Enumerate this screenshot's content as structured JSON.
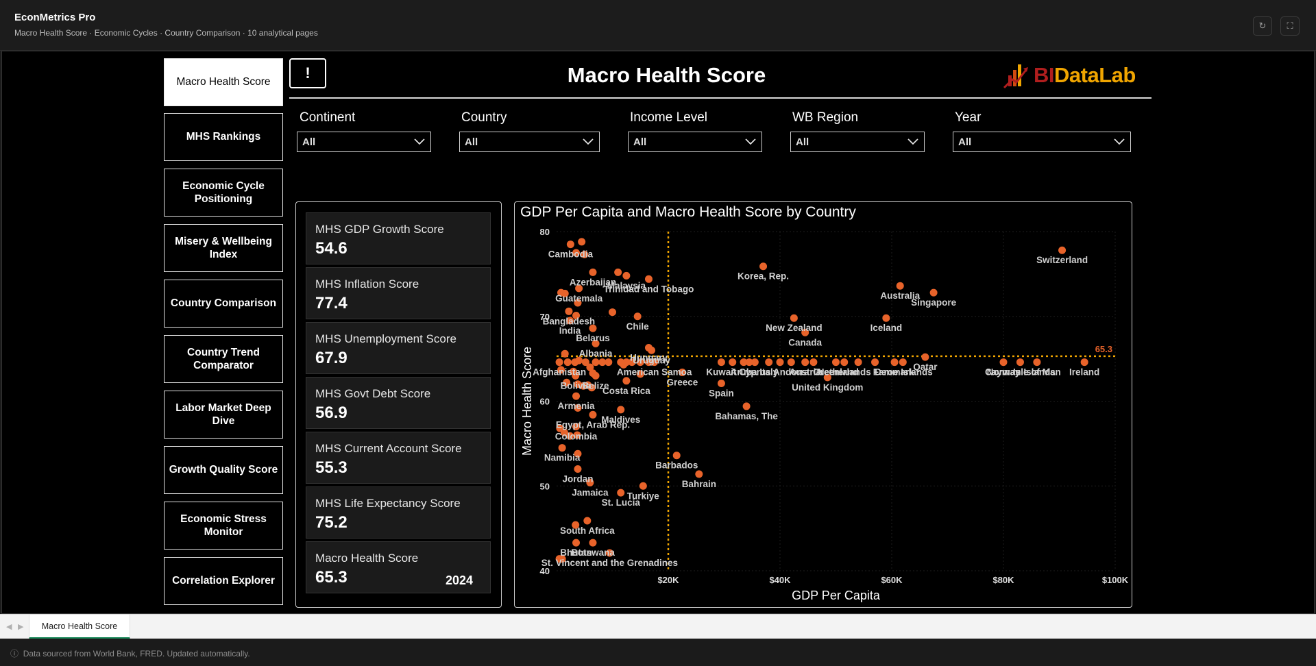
{
  "app": {
    "title": "EconMetrics Pro",
    "subtitle": "Macro Health Score · Economic Cycles · Country Comparison · 10 analytical pages",
    "refresh_icon": "↻",
    "fullscreen_icon": "⛶"
  },
  "nav": [
    {
      "label": "Macro Health Score",
      "active": true
    },
    {
      "label": "MHS Rankings",
      "active": false
    },
    {
      "label": "Economic Cycle Positioning",
      "active": false
    },
    {
      "label": "Misery & Wellbeing Index",
      "active": false
    },
    {
      "label": "Country Comparison",
      "active": false
    },
    {
      "label": "Country Trend Comparator",
      "active": false
    },
    {
      "label": "Labor Market Deep Dive",
      "active": false
    },
    {
      "label": "Growth Quality Score",
      "active": false
    },
    {
      "label": "Economic Stress Monitor",
      "active": false
    },
    {
      "label": "Correlation Explorer",
      "active": false
    }
  ],
  "header": {
    "alert_icon": "!",
    "page_title": "Macro Health Score",
    "logo_bi": "BI",
    "logo_rest": "DataLab"
  },
  "filters": [
    {
      "label": "Continent",
      "value": "All"
    },
    {
      "label": "Country",
      "value": "All"
    },
    {
      "label": "Income Level",
      "value": "All"
    },
    {
      "label": "WB Region",
      "value": "All"
    },
    {
      "label": "Year",
      "value": "All"
    }
  ],
  "kpis": [
    {
      "label": "MHS GDP Growth Score",
      "value": "54.6"
    },
    {
      "label": "MHS Inflation Score",
      "value": "77.4"
    },
    {
      "label": "MHS Unemployment Score",
      "value": "67.9"
    },
    {
      "label": "MHS Govt Debt Score",
      "value": "56.9"
    },
    {
      "label": "MHS Current Account Score",
      "value": "55.3"
    },
    {
      "label": "MHS Life Expectancy Score",
      "value": "75.2"
    },
    {
      "label": "Macro Health Score",
      "value": "65.3",
      "year": "2024"
    }
  ],
  "chart_data": {
    "type": "scatter",
    "title": "GDP Per Capita and Macro Health Score by Country",
    "xlabel": "GDP Per Capita",
    "ylabel": "Macro Health Score",
    "xlim": [
      0,
      100000
    ],
    "ylim": [
      40,
      80
    ],
    "xticks": [
      {
        "v": 20000,
        "label": "$20K"
      },
      {
        "v": 40000,
        "label": "$40K"
      },
      {
        "v": 60000,
        "label": "$60K"
      },
      {
        "v": 80000,
        "label": "$80K"
      },
      {
        "v": 100000,
        "label": "$100K"
      }
    ],
    "yticks": [
      {
        "v": 40,
        "label": "40"
      },
      {
        "v": 50,
        "label": "50"
      },
      {
        "v": 60,
        "label": "60"
      },
      {
        "v": 70,
        "label": "70"
      },
      {
        "v": 80,
        "label": "80"
      }
    ],
    "avg_x": 20000,
    "avg_y": 65.3,
    "avg_y_label": "65.3",
    "point_color": "#e8632a",
    "ref_line_color": "#f0a500",
    "points": [
      {
        "name": "Switzerland",
        "x": 90500,
        "y": 77.8
      },
      {
        "name": "Singapore",
        "x": 67500,
        "y": 72.8
      },
      {
        "name": "Australia",
        "x": 61500,
        "y": 73.6
      },
      {
        "name": "Iceland",
        "x": 59000,
        "y": 69.8
      },
      {
        "name": "Korea, Rep.",
        "x": 37000,
        "y": 75.9
      },
      {
        "name": "New Zealand",
        "x": 42500,
        "y": 69.8
      },
      {
        "name": "Canada",
        "x": 44500,
        "y": 68.1
      },
      {
        "name": "Malaysia",
        "x": 12500,
        "y": 74.8
      },
      {
        "name": "Trinidad and Tobago",
        "x": 16500,
        "y": 74.4
      },
      {
        "name": "Cambodia",
        "x": 2500,
        "y": 78.5
      },
      {
        "name": "",
        "x": 4500,
        "y": 78.8
      },
      {
        "name": "",
        "x": 3500,
        "y": 77.5
      },
      {
        "name": "",
        "x": 5000,
        "y": 77.3
      },
      {
        "name": "Azerbaijan",
        "x": 6500,
        "y": 75.2
      },
      {
        "name": "",
        "x": 11000,
        "y": 75.2
      },
      {
        "name": "Guatemala",
        "x": 4000,
        "y": 73.3
      },
      {
        "name": "",
        "x": 1500,
        "y": 72.7
      },
      {
        "name": "",
        "x": 800,
        "y": 72.8
      },
      {
        "name": "",
        "x": 3800,
        "y": 71.6
      },
      {
        "name": "Bangladesh",
        "x": 2200,
        "y": 70.6
      },
      {
        "name": "Chile",
        "x": 14500,
        "y": 70.0
      },
      {
        "name": "",
        "x": 10000,
        "y": 70.5
      },
      {
        "name": "",
        "x": 3500,
        "y": 70.1
      },
      {
        "name": "India",
        "x": 2400,
        "y": 69.5
      },
      {
        "name": "Belarus",
        "x": 6500,
        "y": 68.6
      },
      {
        "name": "Albania",
        "x": 7000,
        "y": 66.8
      },
      {
        "name": "Hungary",
        "x": 16500,
        "y": 66.3
      },
      {
        "name": "Uruguay",
        "x": 17000,
        "y": 66.0
      },
      {
        "name": "",
        "x": 1500,
        "y": 65.6
      },
      {
        "name": "",
        "x": 4000,
        "y": 64.8
      },
      {
        "name": "Afghanistan",
        "x": 500,
        "y": 64.6
      },
      {
        "name": "",
        "x": 2000,
        "y": 64.6
      },
      {
        "name": "",
        "x": 3300,
        "y": 64.6
      },
      {
        "name": "",
        "x": 5200,
        "y": 64.6
      },
      {
        "name": "",
        "x": 7000,
        "y": 64.6
      },
      {
        "name": "",
        "x": 8200,
        "y": 64.6
      },
      {
        "name": "",
        "x": 9300,
        "y": 64.6
      },
      {
        "name": "",
        "x": 11500,
        "y": 64.6
      },
      {
        "name": "",
        "x": 12500,
        "y": 64.6
      },
      {
        "name": "",
        "x": 13500,
        "y": 64.6
      },
      {
        "name": "",
        "x": 15000,
        "y": 64.6
      },
      {
        "name": "",
        "x": 16500,
        "y": 64.6
      },
      {
        "name": "American Samoa",
        "x": 17500,
        "y": 64.6
      },
      {
        "name": "",
        "x": 12000,
        "y": 64.3
      },
      {
        "name": "",
        "x": 6000,
        "y": 64.0
      },
      {
        "name": "",
        "x": 800,
        "y": 63.7
      },
      {
        "name": "",
        "x": 3000,
        "y": 63.5
      },
      {
        "name": "Bolivia",
        "x": 3400,
        "y": 63.0
      },
      {
        "name": "",
        "x": 6500,
        "y": 63.3
      },
      {
        "name": "Belize",
        "x": 7000,
        "y": 63.0
      },
      {
        "name": "",
        "x": 15000,
        "y": 63.2
      },
      {
        "name": "",
        "x": 1800,
        "y": 62.2
      },
      {
        "name": "",
        "x": 3800,
        "y": 62.0
      },
      {
        "name": "",
        "x": 4800,
        "y": 61.8
      },
      {
        "name": "",
        "x": 5600,
        "y": 61.9
      },
      {
        "name": "",
        "x": 6300,
        "y": 61.6
      },
      {
        "name": "Armenia",
        "x": 3500,
        "y": 60.6
      },
      {
        "name": "Costa Rica",
        "x": 12500,
        "y": 62.4
      },
      {
        "name": "Greece",
        "x": 22500,
        "y": 63.4
      },
      {
        "name": "Spain",
        "x": 29500,
        "y": 62.1
      },
      {
        "name": "",
        "x": 3800,
        "y": 59.2
      },
      {
        "name": "Egypt, Arab Rep.",
        "x": 6500,
        "y": 58.4
      },
      {
        "name": "Maldives",
        "x": 11500,
        "y": 59.0
      },
      {
        "name": "Colombia",
        "x": 3500,
        "y": 57.0
      },
      {
        "name": "",
        "x": 600,
        "y": 56.8
      },
      {
        "name": "",
        "x": 1400,
        "y": 56.3
      },
      {
        "name": "",
        "x": 2400,
        "y": 55.9
      },
      {
        "name": "",
        "x": 3700,
        "y": 56.0
      },
      {
        "name": "Namibia",
        "x": 1000,
        "y": 54.5
      },
      {
        "name": "",
        "x": 3800,
        "y": 53.8
      },
      {
        "name": "Jordan",
        "x": 3800,
        "y": 52.0
      },
      {
        "name": "Barbados",
        "x": 21500,
        "y": 53.6
      },
      {
        "name": "Bahrain",
        "x": 25500,
        "y": 51.4
      },
      {
        "name": "Jamaica",
        "x": 6000,
        "y": 50.4
      },
      {
        "name": "Turkiye",
        "x": 15500,
        "y": 50.0
      },
      {
        "name": "St. Lucia",
        "x": 11500,
        "y": 49.2
      },
      {
        "name": "South Africa",
        "x": 5500,
        "y": 45.9
      },
      {
        "name": "",
        "x": 3400,
        "y": 45.4
      },
      {
        "name": "Bhutan",
        "x": 3500,
        "y": 43.3
      },
      {
        "name": "Botswana",
        "x": 6500,
        "y": 43.3
      },
      {
        "name": "St. Vincent and the Grenadines",
        "x": 9500,
        "y": 42.1
      },
      {
        "name": "",
        "x": 500,
        "y": 41.4
      },
      {
        "name": "",
        "x": 1000,
        "y": 41.4
      },
      {
        "name": "Bahamas, The",
        "x": 34000,
        "y": 59.4
      },
      {
        "name": "Kuwait",
        "x": 29500,
        "y": 64.6
      },
      {
        "name": "",
        "x": 31500,
        "y": 64.6
      },
      {
        "name": "Aruba",
        "x": 33500,
        "y": 64.6
      },
      {
        "name": "",
        "x": 34500,
        "y": 64.6
      },
      {
        "name": "Cyprus",
        "x": 35500,
        "y": 64.6
      },
      {
        "name": "Italy",
        "x": 38000,
        "y": 64.6
      },
      {
        "name": "",
        "x": 40000,
        "y": 64.6
      },
      {
        "name": "Andorra",
        "x": 42000,
        "y": 64.6
      },
      {
        "name": "Austria",
        "x": 44500,
        "y": 64.6
      },
      {
        "name": "",
        "x": 46000,
        "y": 64.6
      },
      {
        "name": "Greenland",
        "x": 50000,
        "y": 64.6
      },
      {
        "name": "Netherlands",
        "x": 51500,
        "y": 64.6
      },
      {
        "name": "",
        "x": 54000,
        "y": 64.6
      },
      {
        "name": "",
        "x": 57000,
        "y": 64.6
      },
      {
        "name": "United Kingdom",
        "x": 48500,
        "y": 62.8
      },
      {
        "name": "Denmark",
        "x": 60500,
        "y": 64.6
      },
      {
        "name": "Faroe Islands",
        "x": 62000,
        "y": 64.6
      },
      {
        "name": "Qatar",
        "x": 66000,
        "y": 65.2
      },
      {
        "name": "Norway",
        "x": 80000,
        "y": 64.6
      },
      {
        "name": "Cayman Islands",
        "x": 83000,
        "y": 64.6
      },
      {
        "name": "Isle of Man",
        "x": 86000,
        "y": 64.6
      },
      {
        "name": "Ireland",
        "x": 94500,
        "y": 64.6
      }
    ]
  },
  "tabs": {
    "prev_icon": "◀",
    "next_icon": "▶",
    "active_tab": "Macro Health Score"
  },
  "footer": {
    "info_icon": "ⓘ",
    "text": "Data sourced from World Bank, FRED. Updated automatically."
  }
}
